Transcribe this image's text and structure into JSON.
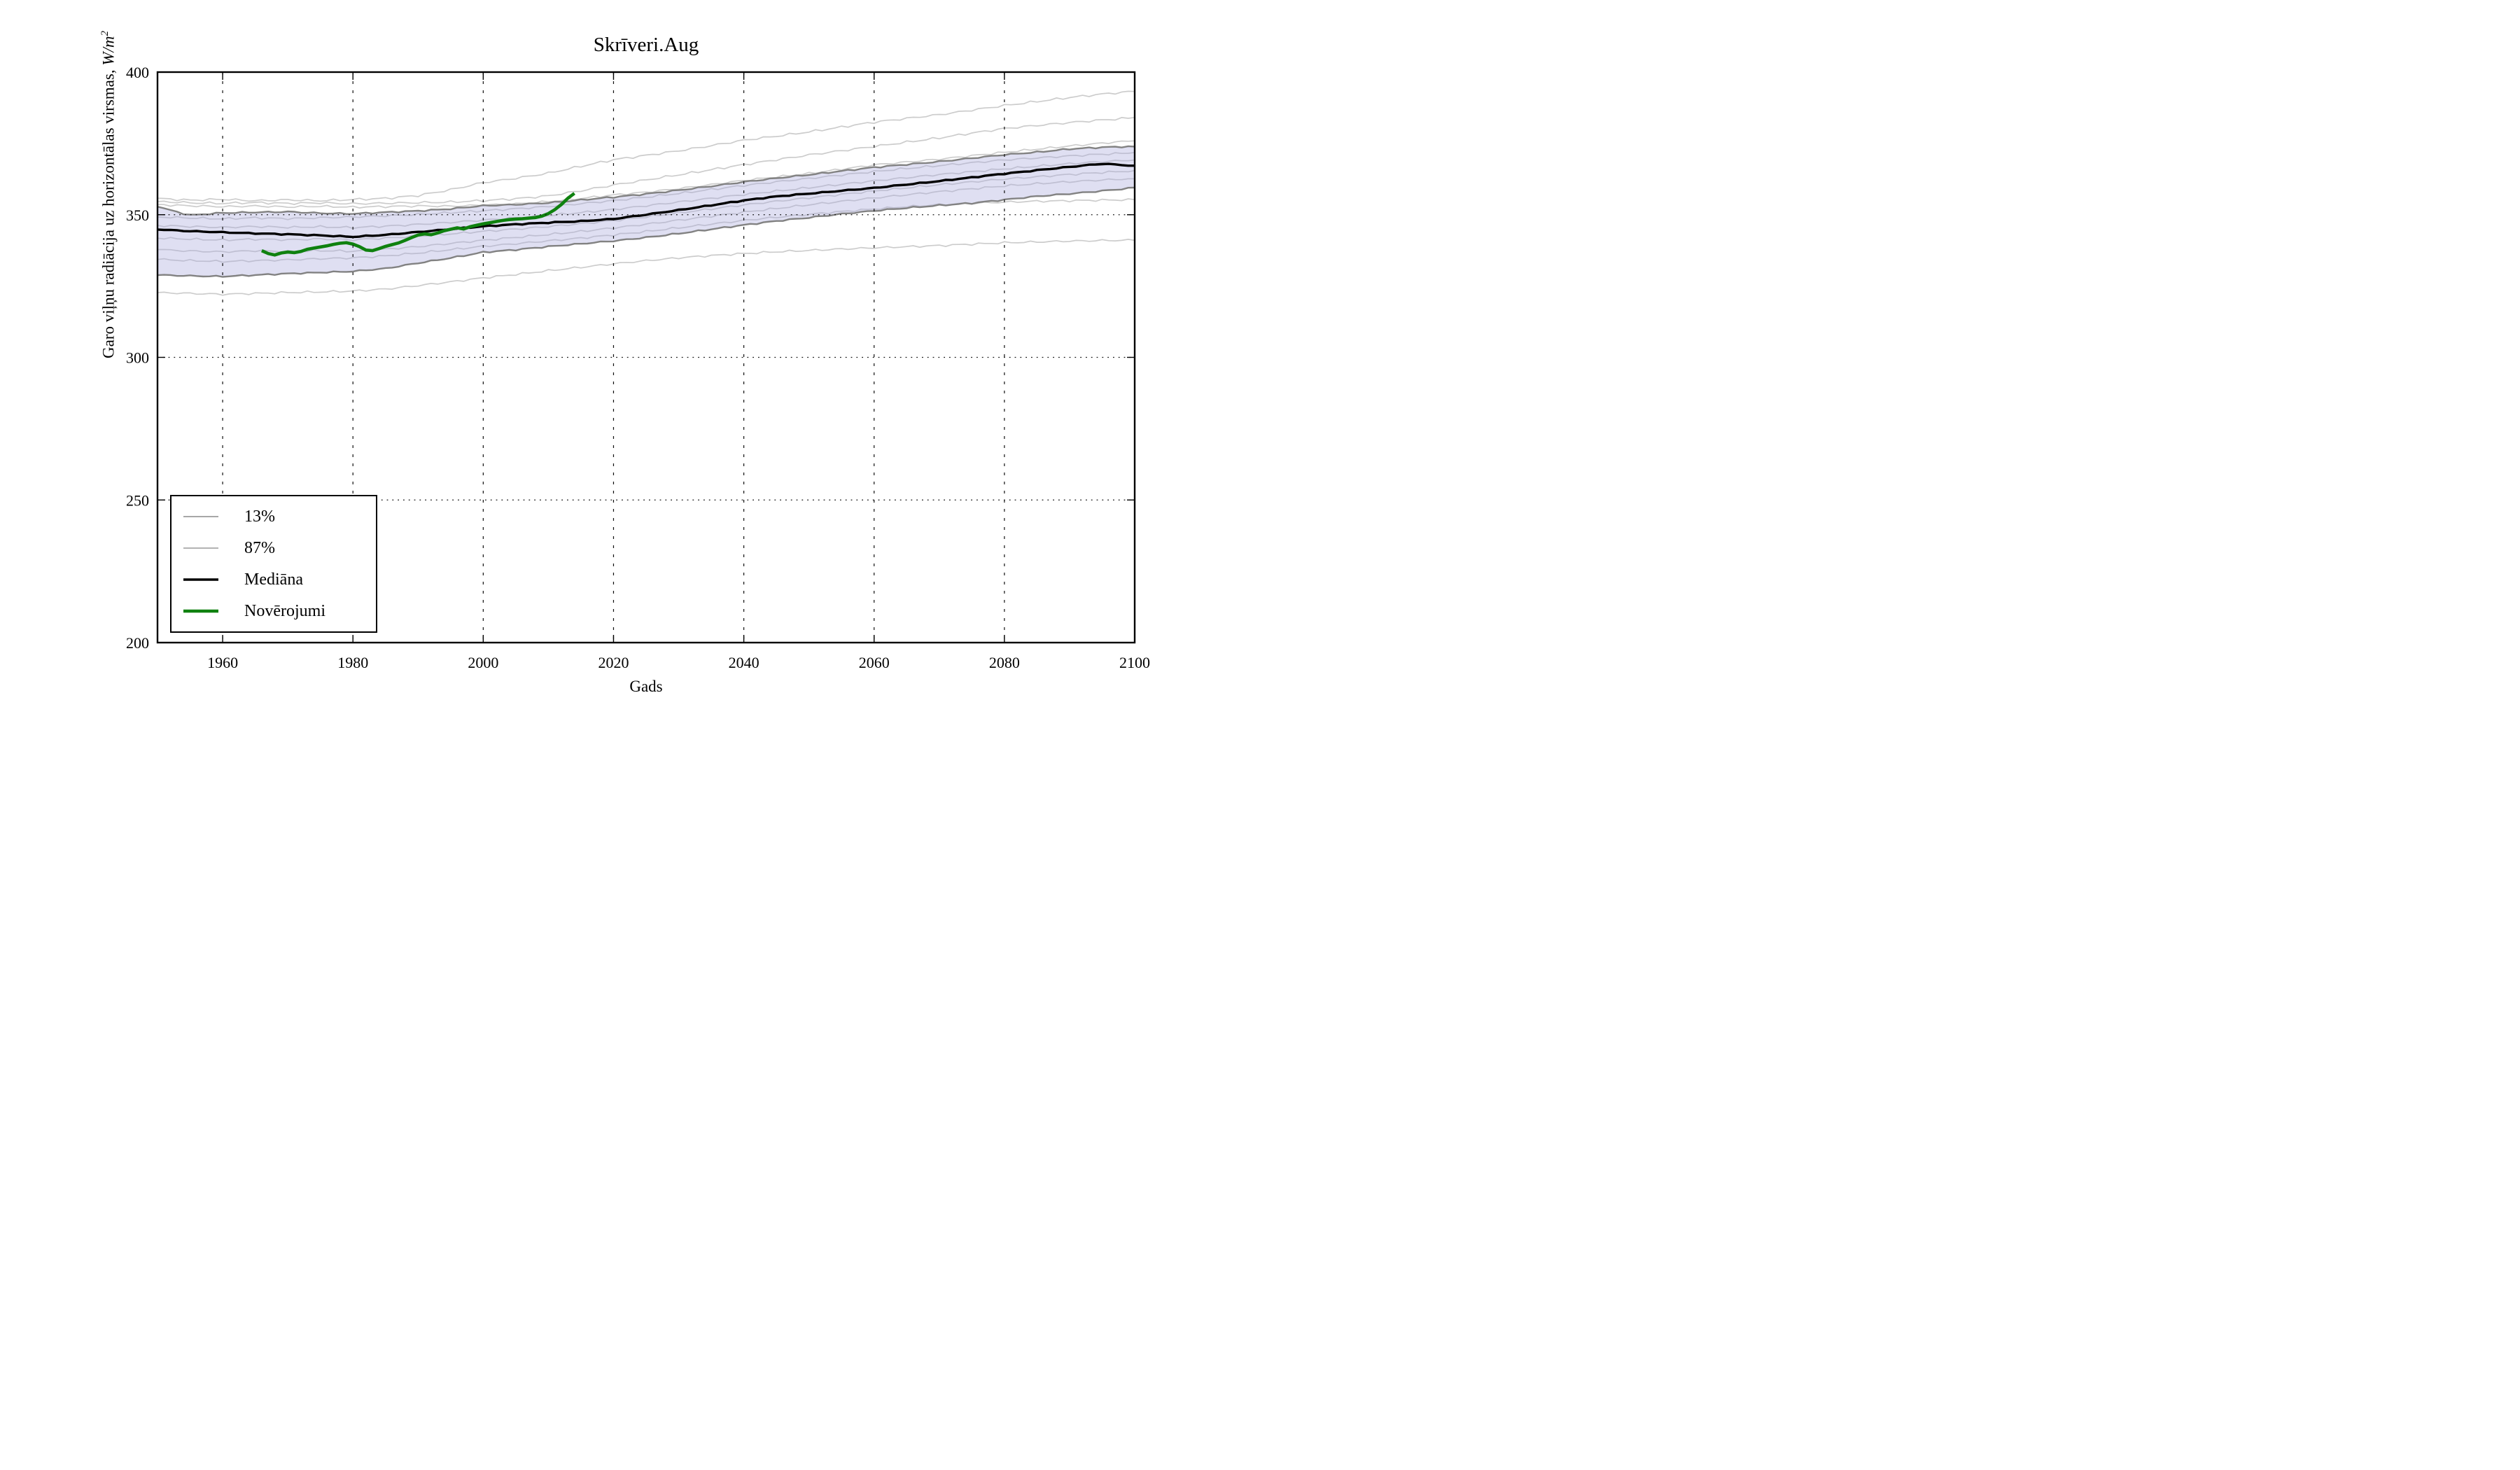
{
  "title": "Skrīveri.Aug",
  "xlabel": "Gads",
  "ylabel_prefix": "Garo viļņu radiācija uz horizontālas virsmas, ",
  "ylabel_units": "W/m",
  "ylabel_exponent": "2",
  "legend": {
    "position": "lower-left",
    "items": [
      {
        "label": "13%",
        "color": "#8c8c8c",
        "stroke_width": 1.6
      },
      {
        "label": "87%",
        "color": "#9a9a9a",
        "stroke_width": 1.6
      },
      {
        "label": "Mediāna",
        "color": "#000000",
        "stroke_width": 3.6
      },
      {
        "label": "Novērojumi",
        "color": "#0f810f",
        "stroke_width": 4.6
      }
    ]
  },
  "colors": {
    "band_fill": "#aaaadd",
    "band_fill_opacity": 0.38,
    "member_line": "#c7c7c7",
    "percentile_line": "#828282",
    "median_line": "#000000",
    "observations_line": "#0f810f",
    "grid": "#111111",
    "spine": "#000000"
  },
  "chart_data": {
    "type": "line",
    "title": "Skrīveri.Aug",
    "xlabel": "Gads",
    "ylabel": "Garo viļņu radiācija uz horizontālas virsmas, W/m^2",
    "xlim": [
      1950,
      2100
    ],
    "ylim": [
      200,
      400
    ],
    "x_ticks": [
      1960,
      1980,
      2000,
      2020,
      2040,
      2060,
      2080,
      2100
    ],
    "y_ticks": [
      200,
      250,
      300,
      350,
      400
    ],
    "grid": "dotted",
    "legend_position": "lower left",
    "years": [
      1950,
      1955,
      1960,
      1965,
      1970,
      1975,
      1980,
      1985,
      1990,
      1995,
      2000,
      2005,
      2010,
      2015,
      2020,
      2025,
      2030,
      2035,
      2040,
      2045,
      2050,
      2055,
      2060,
      2065,
      2070,
      2075,
      2080,
      2085,
      2090,
      2095,
      2100
    ],
    "series": [
      {
        "name": "Mediāna",
        "role": "median",
        "noise": 0.25,
        "values": [
          344.8,
          344.2,
          343.8,
          343.4,
          343.1,
          342.7,
          342.2,
          342.9,
          343.9,
          344.9,
          345.9,
          346.6,
          347.2,
          347.7,
          348.5,
          350.0,
          351.6,
          353.3,
          355.0,
          356.4,
          357.4,
          358.4,
          359.4,
          360.6,
          361.8,
          363.1,
          364.4,
          365.6,
          366.8,
          367.9,
          367.2
        ]
      },
      {
        "name": "87%",
        "role": "upper-percentile",
        "noise": 0.35,
        "values": [
          352.8,
          349.9,
          350.7,
          350.9,
          351.1,
          350.6,
          350.4,
          350.9,
          351.4,
          352.1,
          353.2,
          353.6,
          354.2,
          355.2,
          356.2,
          357.3,
          358.6,
          360.0,
          361.5,
          362.8,
          364.0,
          365.3,
          366.6,
          367.6,
          368.6,
          369.8,
          371.0,
          371.9,
          373.0,
          373.6,
          373.9
        ]
      },
      {
        "name": "13%",
        "role": "lower-percentile",
        "noise": 0.35,
        "values": [
          328.8,
          328.5,
          328.3,
          328.8,
          329.3,
          329.7,
          330.1,
          331.1,
          333.0,
          334.8,
          336.8,
          337.7,
          338.8,
          339.8,
          340.8,
          342.0,
          343.4,
          344.9,
          346.4,
          347.8,
          349.0,
          350.3,
          351.4,
          352.4,
          353.3,
          354.1,
          355.3,
          356.5,
          357.4,
          358.4,
          359.5
        ]
      },
      {
        "name": "member-1",
        "role": "ensemble-member",
        "noise": 0.55,
        "values": [
          355.8,
          355.2,
          355.5,
          355.0,
          355.3,
          355.0,
          355.4,
          355.8,
          356.8,
          358.8,
          361.3,
          362.8,
          364.6,
          367.0,
          369.3,
          370.8,
          372.4,
          374.2,
          376.1,
          377.5,
          379.0,
          380.7,
          382.4,
          383.7,
          385.0,
          386.6,
          388.2,
          389.6,
          391.0,
          392.2,
          393.2
        ]
      },
      {
        "name": "member-2",
        "role": "ensemble-member",
        "noise": 0.55,
        "values": [
          354.6,
          354.1,
          353.9,
          354.2,
          353.9,
          354.1,
          353.8,
          354.0,
          354.2,
          354.4,
          354.9,
          355.6,
          356.6,
          358.4,
          360.4,
          362.2,
          364.0,
          365.8,
          367.6,
          369.3,
          371.0,
          372.5,
          374.0,
          375.5,
          377.0,
          378.7,
          380.3,
          381.4,
          382.4,
          383.3,
          384.1
        ]
      },
      {
        "name": "member-3",
        "role": "ensemble-member",
        "noise": 0.5,
        "values": [
          353.6,
          353.2,
          352.9,
          353.1,
          352.8,
          353.0,
          352.7,
          352.9,
          353.1,
          353.0,
          353.4,
          353.8,
          354.6,
          355.7,
          356.9,
          357.9,
          359.1,
          360.5,
          362.0,
          363.2,
          364.4,
          365.9,
          367.4,
          368.4,
          369.4,
          370.6,
          371.8,
          372.9,
          374.0,
          375.0,
          375.9
        ]
      },
      {
        "name": "member-4",
        "role": "ensemble-member",
        "noise": 0.5,
        "values": [
          349.2,
          348.8,
          348.5,
          348.9,
          348.6,
          348.9,
          349.2,
          349.6,
          350.1,
          350.7,
          351.4,
          352.1,
          352.9,
          353.9,
          355.0,
          356.2,
          357.5,
          358.9,
          360.3,
          361.6,
          362.8,
          364.0,
          365.2,
          366.3,
          367.3,
          368.3,
          369.3,
          370.0,
          370.7,
          371.3,
          371.8
        ]
      },
      {
        "name": "member-5",
        "role": "ensemble-member",
        "noise": 0.5,
        "values": [
          346.3,
          345.9,
          345.6,
          345.9,
          345.6,
          345.8,
          345.5,
          346.0,
          346.6,
          347.3,
          348.1,
          348.9,
          349.7,
          350.7,
          351.8,
          353.1,
          354.4,
          355.7,
          357.0,
          358.2,
          359.4,
          360.6,
          361.8,
          362.9,
          364.0,
          365.0,
          366.0,
          366.9,
          367.8,
          368.5,
          369.2
        ]
      },
      {
        "name": "member-6",
        "role": "ensemble-member",
        "noise": 0.5,
        "values": [
          341.8,
          341.4,
          341.1,
          341.4,
          341.2,
          341.5,
          341.2,
          341.8,
          342.5,
          343.3,
          344.2,
          345.0,
          345.9,
          346.9,
          348.0,
          349.3,
          350.7,
          352.1,
          353.5,
          354.8,
          356.0,
          357.2,
          358.4,
          359.5,
          360.6,
          361.6,
          362.6,
          363.4,
          364.2,
          364.9,
          365.5
        ]
      },
      {
        "name": "member-7",
        "role": "ensemble-member",
        "noise": 0.5,
        "values": [
          337.8,
          337.3,
          337.0,
          337.4,
          337.1,
          337.4,
          337.2,
          337.9,
          338.8,
          339.9,
          341.0,
          342.0,
          343.0,
          344.1,
          345.3,
          346.6,
          348.0,
          349.4,
          350.8,
          352.1,
          353.4,
          354.6,
          355.8,
          356.9,
          358.0,
          359.0,
          360.0,
          360.8,
          361.5,
          362.1,
          362.6
        ]
      },
      {
        "name": "member-8",
        "role": "ensemble-member",
        "noise": 0.5,
        "values": [
          334.3,
          333.9,
          333.6,
          333.9,
          334.2,
          334.6,
          334.9,
          335.6,
          336.6,
          337.8,
          339.0,
          339.9,
          340.9,
          341.9,
          343.0,
          344.2,
          345.5,
          346.8,
          348.1,
          349.2,
          350.2,
          351.2,
          352.1,
          352.9,
          353.6,
          354.1,
          354.5,
          354.8,
          355.0,
          355.2,
          355.3
        ]
      },
      {
        "name": "member-9",
        "role": "ensemble-member",
        "noise": 0.5,
        "values": [
          322.7,
          322.4,
          322.1,
          322.4,
          322.7,
          322.9,
          323.2,
          323.9,
          325.1,
          326.4,
          327.8,
          329.0,
          330.3,
          331.5,
          332.7,
          333.8,
          334.8,
          335.6,
          336.3,
          336.9,
          337.4,
          337.9,
          338.3,
          338.7,
          339.1,
          339.6,
          340.1,
          340.4,
          340.7,
          340.9,
          341.0
        ]
      }
    ],
    "observations": {
      "name": "Novērojumi",
      "year_start": 1966,
      "year_end": 2014,
      "values": [
        337.4,
        336.4,
        335.9,
        336.6,
        336.9,
        336.7,
        337.1,
        337.9,
        338.3,
        338.7,
        339.1,
        339.6,
        340.0,
        340.2,
        339.7,
        338.8,
        337.6,
        337.4,
        338.1,
        338.9,
        339.5,
        340.1,
        341.0,
        342.0,
        342.9,
        343.3,
        343.0,
        343.6,
        344.4,
        344.9,
        345.4,
        345.0,
        345.8,
        346.3,
        346.8,
        347.2,
        347.6,
        348.0,
        348.3,
        348.5,
        348.6,
        348.8,
        349.0,
        349.5,
        350.4,
        351.8,
        353.6,
        355.8,
        357.5
      ]
    },
    "band": {
      "between": [
        "13%",
        "87%"
      ],
      "fill": "#aaaadd",
      "opacity": 0.38
    }
  }
}
